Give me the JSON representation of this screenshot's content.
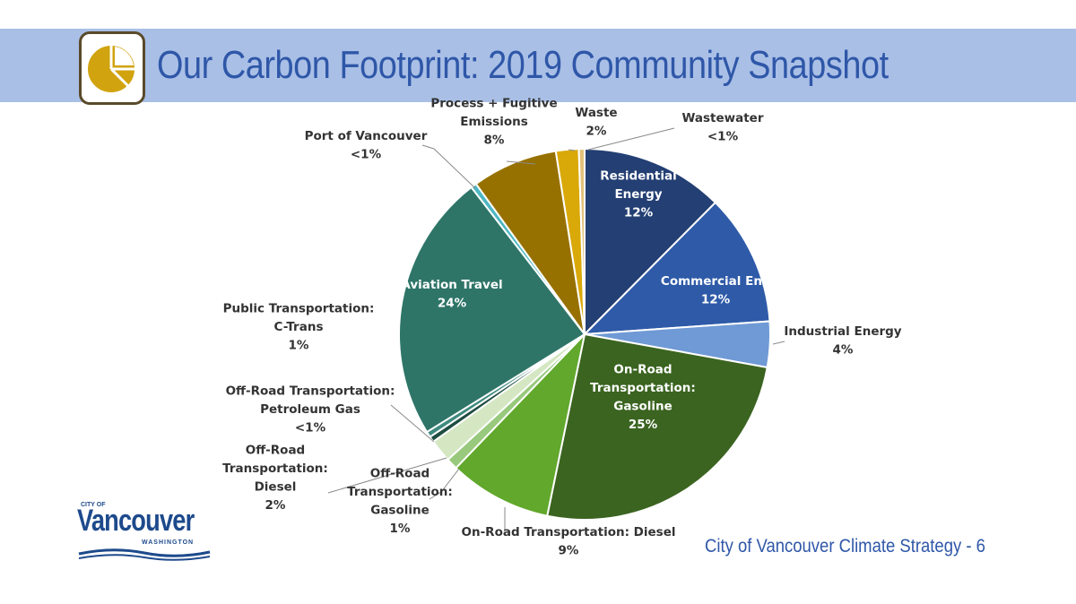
{
  "header": {
    "title": "Our Carbon Footprint: 2019 Community Snapshot",
    "icon": "pie-chart-icon",
    "banner_color": "#a9bfe6",
    "title_color": "#2f57a8"
  },
  "footer": {
    "text": "City of Vancouver Climate Strategy - 6"
  },
  "logo": {
    "city_of": "CITY OF",
    "name": "Vancouver",
    "state": "WASHINGTON"
  },
  "chart_data": {
    "type": "pie",
    "title": "",
    "slices": [
      {
        "label": "Residential Energy",
        "display": "12%",
        "value": 12.5,
        "color": "#243f73"
      },
      {
        "label": "Commercial Energy",
        "display": "12%",
        "value": 11.5,
        "color": "#2e5aa8"
      },
      {
        "label": "Industrial Energy",
        "display": "4%",
        "value": 4,
        "color": "#6f9ad5"
      },
      {
        "label": "On-Road Transportation: Gasoline",
        "display": "25%",
        "value": 25.5,
        "color": "#3b6420"
      },
      {
        "label": "On-Road Transportation: Diesel",
        "display": "9%",
        "value": 9,
        "color": "#61a82c"
      },
      {
        "label": "Off-Road Transportation: Gasoline",
        "display": "1%",
        "value": 1,
        "color": "#98c97c"
      },
      {
        "label": "Off-Road Transportation: Diesel",
        "display": "2%",
        "value": 2,
        "color": "#d4e7c2"
      },
      {
        "label": "Off-Road Transportation: Petroleum Gas",
        "display": "<1%",
        "value": 0.5,
        "color": "#1f4d42"
      },
      {
        "label": "Public Transportation: C-Trans",
        "display": "1%",
        "value": 0.5,
        "color": "#3e8a7e"
      },
      {
        "label": "Aviation Travel",
        "display": "24%",
        "value": 23.5,
        "color": "#2e7568"
      },
      {
        "label": "Port of Vancouver",
        "display": "<1%",
        "value": 0.5,
        "color": "#4db6c2"
      },
      {
        "label": "Process + Fugitive Emissions",
        "display": "8%",
        "value": 7.5,
        "color": "#977100"
      },
      {
        "label": "Waste",
        "display": "2%",
        "value": 2,
        "color": "#d9a90a"
      },
      {
        "label": "Wastewater",
        "display": "<1%",
        "value": 0.5,
        "color": "#e2c27a"
      }
    ],
    "labels": {
      "inside": [
        {
          "lines": [
            "Residential",
            "Energy",
            "12%"
          ]
        },
        {
          "lines": [
            "Commercial Ene",
            "12%"
          ]
        },
        {
          "lines": [
            "On-Road",
            "Transportation:",
            "Gasoline",
            "25%"
          ]
        },
        {
          "lines": [
            "Aviation Travel",
            "24%"
          ]
        }
      ],
      "outside": [
        {
          "lines": [
            "Industrial Energy",
            "4%"
          ]
        },
        {
          "lines": [
            "On-Road Transportation: Diesel",
            "9%"
          ]
        },
        {
          "lines": [
            "Off-Road",
            "Transportation:",
            "Gasoline",
            "1%"
          ]
        },
        {
          "lines": [
            "Off-Road",
            "Transportation:",
            "Diesel",
            "2%"
          ]
        },
        {
          "lines": [
            "Off-Road Transportation:",
            "Petroleum Gas",
            "<1%"
          ]
        },
        {
          "lines": [
            "Public Transportation:",
            "C-Trans",
            "1%"
          ]
        },
        {
          "lines": [
            "Port of Vancouver",
            "<1%"
          ]
        },
        {
          "lines": [
            "Process + Fugitive",
            "Emissions",
            "8%"
          ]
        },
        {
          "lines": [
            "Waste",
            "2%"
          ]
        },
        {
          "lines": [
            "Wastewater",
            "<1%"
          ]
        }
      ]
    }
  }
}
